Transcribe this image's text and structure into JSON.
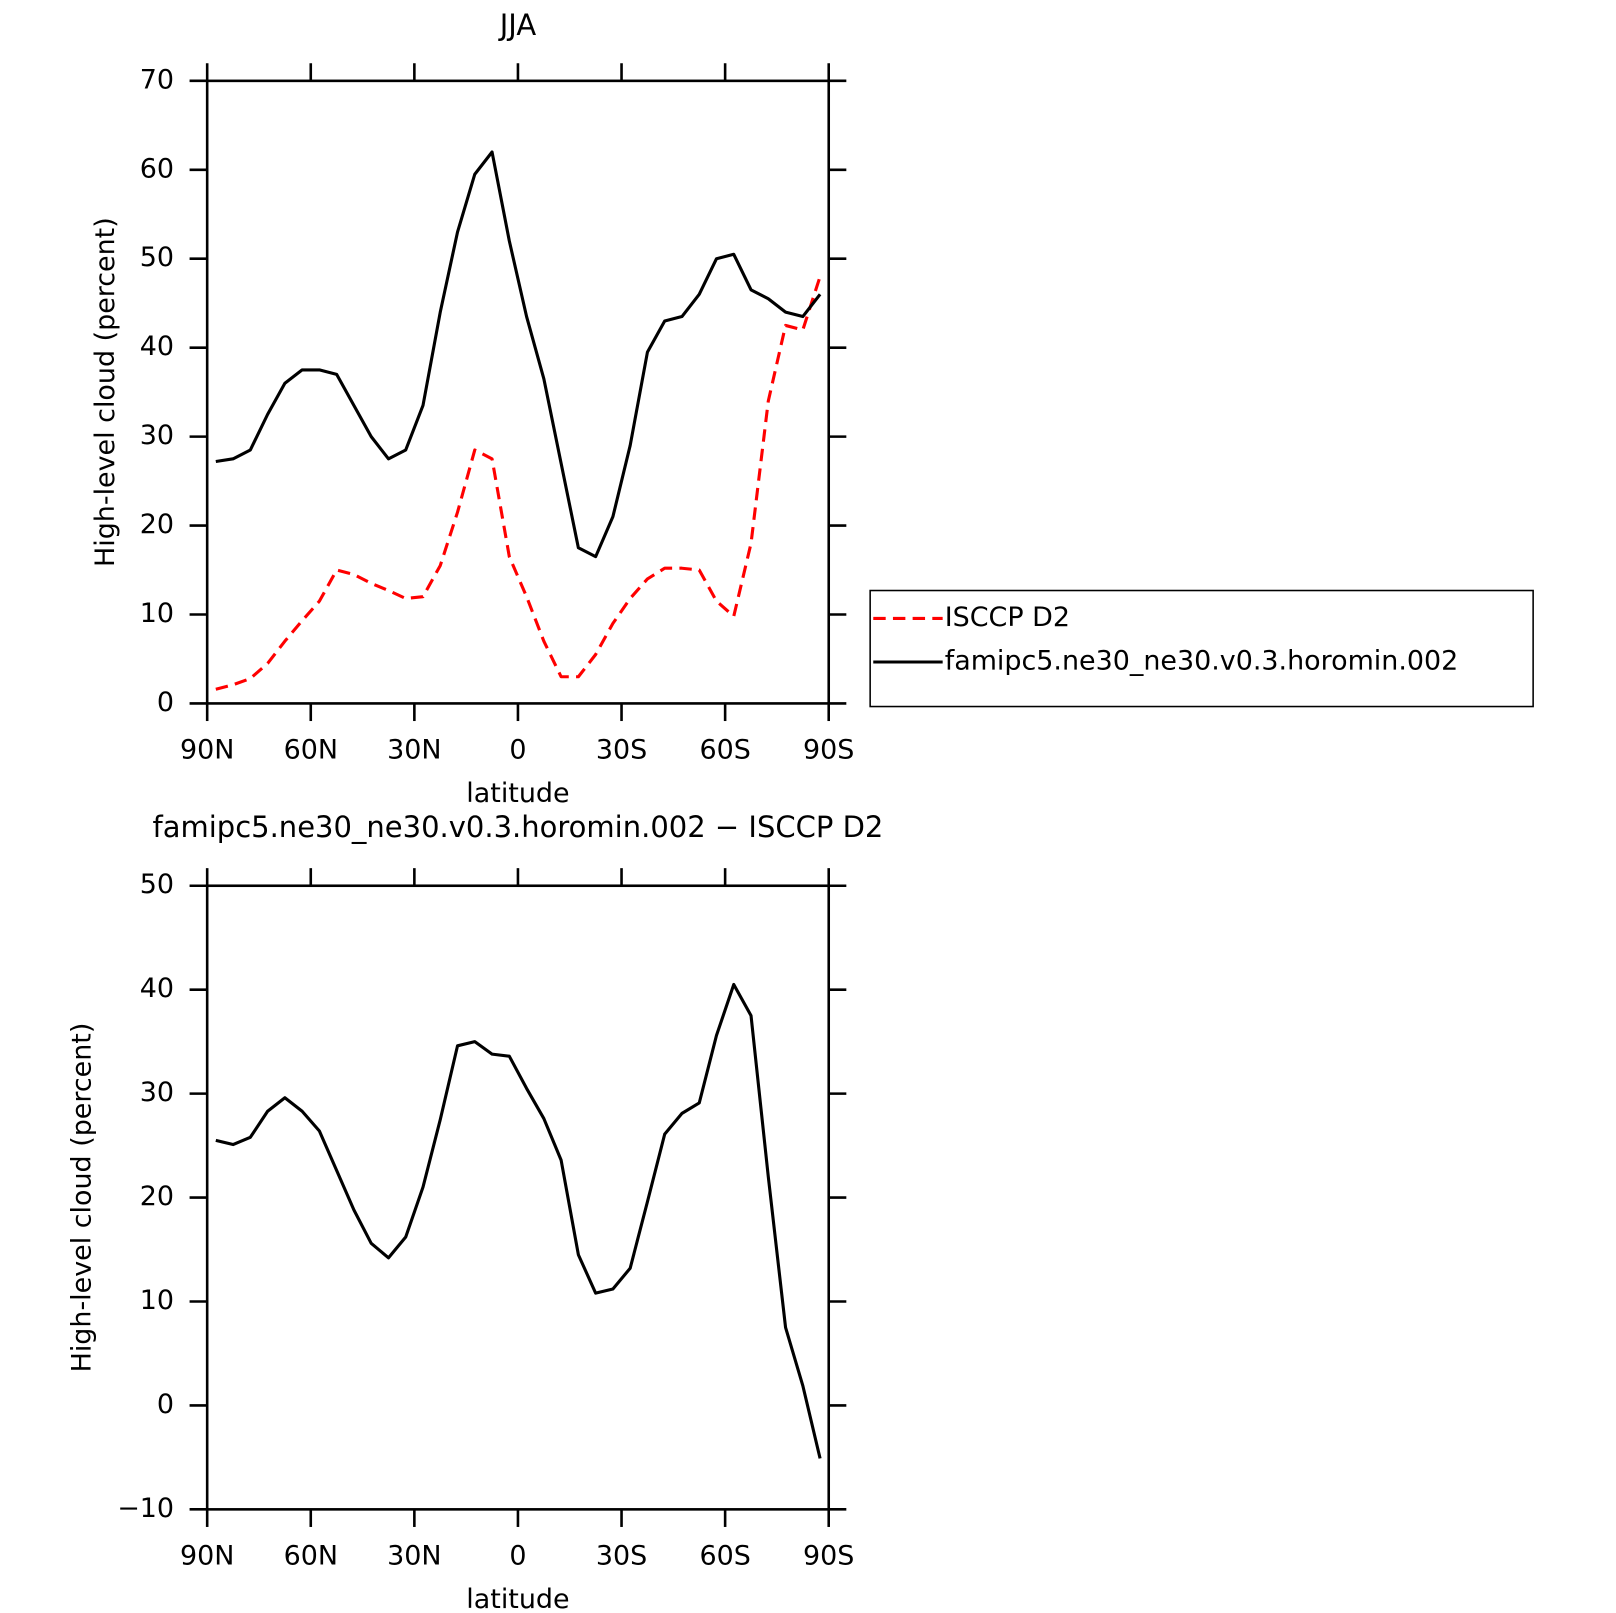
{
  "chart_data": [
    {
      "type": "line",
      "title": "JJA",
      "xlabel": "latitude",
      "ylabel": "High-level cloud (percent)",
      "x": [
        87.5,
        82.5,
        77.5,
        72.5,
        67.5,
        62.5,
        57.5,
        52.5,
        47.5,
        42.5,
        37.5,
        32.5,
        27.5,
        22.5,
        17.5,
        12.5,
        7.5,
        2.5,
        -2.5,
        -7.5,
        -12.5,
        -17.5,
        -22.5,
        -27.5,
        -32.5,
        -37.5,
        -42.5,
        -47.5,
        -52.5,
        -57.5,
        -62.5,
        -67.5,
        -72.5,
        -77.5,
        -82.5,
        -87.5
      ],
      "series": [
        {
          "name": "ISCCP D2",
          "color": "#ff0000",
          "style": "dashed",
          "values": [
            1.6,
            2.1,
            2.8,
            4.5,
            7.0,
            9.3,
            11.5,
            15.0,
            14.5,
            13.5,
            12.7,
            11.8,
            12.0,
            15.5,
            21.5,
            28.5,
            27.5,
            16.5,
            12.0,
            7.0,
            3.0,
            3.0,
            5.5,
            9.0,
            11.8,
            14.0,
            15.2,
            15.2,
            15.0,
            11.5,
            9.8,
            18.0,
            34.0,
            42.5,
            42.0,
            48.0
          ]
        },
        {
          "name": "famipc5.ne30_ne30.v0.3.horomin.002",
          "color": "#000000",
          "style": "solid",
          "values": [
            27.2,
            27.5,
            28.5,
            32.5,
            36.0,
            37.5,
            37.5,
            37.0,
            33.5,
            30.0,
            27.5,
            28.5,
            33.5,
            44.0,
            53.0,
            59.5,
            62.0,
            52.0,
            43.5,
            36.5,
            27.0,
            17.5,
            16.5,
            21.0,
            29.0,
            39.5,
            43.0,
            43.5,
            46.0,
            50.0,
            50.5,
            46.5,
            45.5,
            44.0,
            43.5,
            46.0
          ]
        }
      ],
      "xlim": [
        90,
        -90
      ],
      "xticks": [
        {
          "value": 90,
          "label": "90N"
        },
        {
          "value": 60,
          "label": "60N"
        },
        {
          "value": 30,
          "label": "30N"
        },
        0,
        {
          "value": -30,
          "label": "30S"
        },
        {
          "value": -60,
          "label": "60S"
        },
        {
          "value": -90,
          "label": "90S"
        }
      ],
      "ylim": [
        0,
        70
      ],
      "yticks": [
        0,
        10,
        20,
        30,
        40,
        50,
        60,
        70
      ],
      "legend": "right"
    },
    {
      "type": "line",
      "title": "famipc5.ne30_ne30.v0.3.horomin.002 − ISCCP D2",
      "xlabel": "latitude",
      "ylabel": "High-level cloud (percent)",
      "x": [
        87.5,
        82.5,
        77.5,
        72.5,
        67.5,
        62.5,
        57.5,
        52.5,
        47.5,
        42.5,
        37.5,
        32.5,
        27.5,
        22.5,
        17.5,
        12.5,
        7.5,
        2.5,
        -2.5,
        -7.5,
        -12.5,
        -17.5,
        -22.5,
        -27.5,
        -32.5,
        -37.5,
        -42.5,
        -47.5,
        -52.5,
        -57.5,
        -62.5,
        -67.5,
        -72.5,
        -77.5,
        -82.5,
        -87.5
      ],
      "values": [
        25.5,
        25.1,
        25.8,
        28.3,
        29.6,
        28.3,
        26.4,
        22.6,
        18.8,
        15.6,
        14.2,
        16.2,
        21.0,
        27.5,
        34.6,
        35.0,
        33.8,
        33.6,
        30.5,
        27.6,
        23.6,
        14.5,
        10.8,
        11.2,
        13.2,
        19.6,
        26.1,
        28.1,
        29.1,
        35.6,
        40.5,
        37.5,
        22.0,
        7.5,
        1.9,
        -5.1
      ],
      "color": "#000000",
      "xlim": [
        90,
        -90
      ],
      "xticks": [
        {
          "value": 90,
          "label": "90N"
        },
        {
          "value": 60,
          "label": "60N"
        },
        {
          "value": 30,
          "label": "30N"
        },
        0,
        {
          "value": -30,
          "label": "30S"
        },
        {
          "value": -60,
          "label": "60S"
        },
        {
          "value": -90,
          "label": "90S"
        }
      ],
      "ylim": [
        -10,
        50
      ],
      "yticks": [
        {
          "value": -10,
          "label": "−10"
        },
        0,
        10,
        20,
        30,
        40,
        50
      ]
    }
  ]
}
